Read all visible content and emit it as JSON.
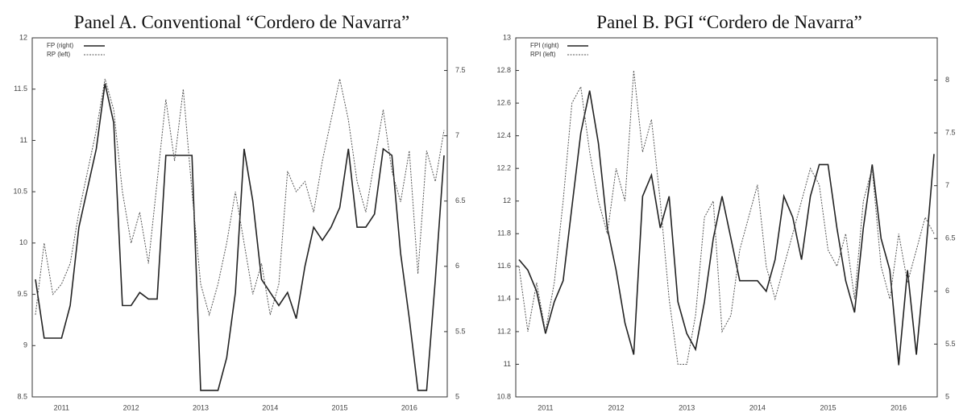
{
  "chart_data": [
    {
      "type": "line",
      "title": "Panel A. Conventional “Cordero de Navarra”",
      "categories": [
        null,
        null,
        null,
        "2011",
        null,
        null,
        null,
        null,
        null,
        null,
        null,
        "2012",
        null,
        null,
        null,
        null,
        null,
        null,
        null,
        "2013",
        null,
        null,
        null,
        null,
        null,
        null,
        null,
        "2014",
        null,
        null,
        null,
        null,
        null,
        null,
        null,
        "2015",
        null,
        null,
        null,
        null,
        null,
        null,
        null,
        "2016",
        null,
        null,
        null,
        null
      ],
      "series": [
        {
          "name": "FP (right)",
          "color": "#222222",
          "style": "solid",
          "axis": "y2",
          "values": [
            5.9,
            5.45,
            5.45,
            5.45,
            5.7,
            6.3,
            6.6,
            6.9,
            7.4,
            7.1,
            5.7,
            5.7,
            5.8,
            5.75,
            5.75,
            6.85,
            6.85,
            6.85,
            6.85,
            5.05,
            5.05,
            5.05,
            5.3,
            5.8,
            6.9,
            6.5,
            5.9,
            5.8,
            5.7,
            5.8,
            5.6,
            6.0,
            6.3,
            6.2,
            6.3,
            6.45,
            6.9,
            6.3,
            6.3,
            6.4,
            6.9,
            6.85,
            6.1,
            5.6,
            5.05,
            5.05,
            5.9,
            6.85
          ]
        },
        {
          "name": "RP (left)",
          "color": "#555555",
          "style": "dotted",
          "values": [
            9.3,
            10.0,
            9.5,
            9.6,
            9.8,
            10.3,
            10.7,
            11.1,
            11.6,
            11.3,
            10.5,
            10.0,
            10.3,
            9.8,
            10.6,
            11.4,
            10.8,
            11.5,
            10.5,
            9.6,
            9.3,
            9.6,
            10.0,
            10.5,
            10.0,
            9.5,
            9.8,
            9.3,
            9.6,
            10.7,
            10.5,
            10.6,
            10.3,
            10.8,
            11.2,
            11.6,
            11.2,
            10.6,
            10.3,
            10.8,
            11.3,
            10.7,
            10.4,
            10.9,
            9.7,
            10.9,
            10.6,
            11.1
          ]
        }
      ],
      "ylim": [
        8.5,
        12
      ],
      "yticks": [
        8.5,
        9,
        9.5,
        10,
        10.5,
        11,
        11.5,
        12
      ],
      "y2lim": [
        5,
        7.75
      ],
      "y2ticks": [
        5,
        5.5,
        6,
        6.5,
        7,
        7.5
      ],
      "legend": "upper left"
    },
    {
      "type": "line",
      "title": "Panel B. PGI “Cordero de Navarra”",
      "categories": [
        null,
        null,
        null,
        "2011",
        null,
        null,
        null,
        null,
        null,
        null,
        null,
        "2012",
        null,
        null,
        null,
        null,
        null,
        null,
        null,
        "2013",
        null,
        null,
        null,
        null,
        null,
        null,
        null,
        "2014",
        null,
        null,
        null,
        null,
        null,
        null,
        null,
        "2015",
        null,
        null,
        null,
        null,
        null,
        null,
        null,
        "2016",
        null,
        null,
        null,
        null
      ],
      "series": [
        {
          "name": "FPI (right)",
          "color": "#222222",
          "style": "solid",
          "axis": "y2",
          "values": [
            6.3,
            6.2,
            6.0,
            5.6,
            5.9,
            6.1,
            6.8,
            7.5,
            7.9,
            7.4,
            6.6,
            6.2,
            5.7,
            5.4,
            6.9,
            7.1,
            6.6,
            6.9,
            5.9,
            5.6,
            5.45,
            5.9,
            6.5,
            6.9,
            6.5,
            6.1,
            6.1,
            6.1,
            6.0,
            6.3,
            6.9,
            6.7,
            6.3,
            6.9,
            7.2,
            7.2,
            6.6,
            6.1,
            5.8,
            6.6,
            7.2,
            6.5,
            6.2,
            5.3,
            6.2,
            5.4,
            6.3,
            7.3
          ]
        },
        {
          "name": "RPI (left)",
          "color": "#555555",
          "style": "dotted",
          "values": [
            11.6,
            11.2,
            11.5,
            11.2,
            11.5,
            12.0,
            12.6,
            12.7,
            12.3,
            12.0,
            11.8,
            12.2,
            12.0,
            12.8,
            12.3,
            12.5,
            12.0,
            11.4,
            11.0,
            11.0,
            11.3,
            11.9,
            12.0,
            11.2,
            11.3,
            11.7,
            11.9,
            12.1,
            11.6,
            11.4,
            11.6,
            11.8,
            12.0,
            12.2,
            12.1,
            11.7,
            11.6,
            11.8,
            11.4,
            12.0,
            12.2,
            11.6,
            11.4,
            11.8,
            11.5,
            11.7,
            11.9,
            11.8
          ]
        }
      ],
      "ylim": [
        10.8,
        13
      ],
      "yticks": [
        10.8,
        11,
        11.2,
        11.4,
        11.6,
        11.8,
        12,
        12.2,
        12.4,
        12.6,
        12.8,
        13
      ],
      "y2lim": [
        5,
        8.4
      ],
      "y2ticks": [
        5,
        5.5,
        6,
        6.5,
        7,
        7.5,
        8
      ],
      "legend": "upper left"
    }
  ]
}
